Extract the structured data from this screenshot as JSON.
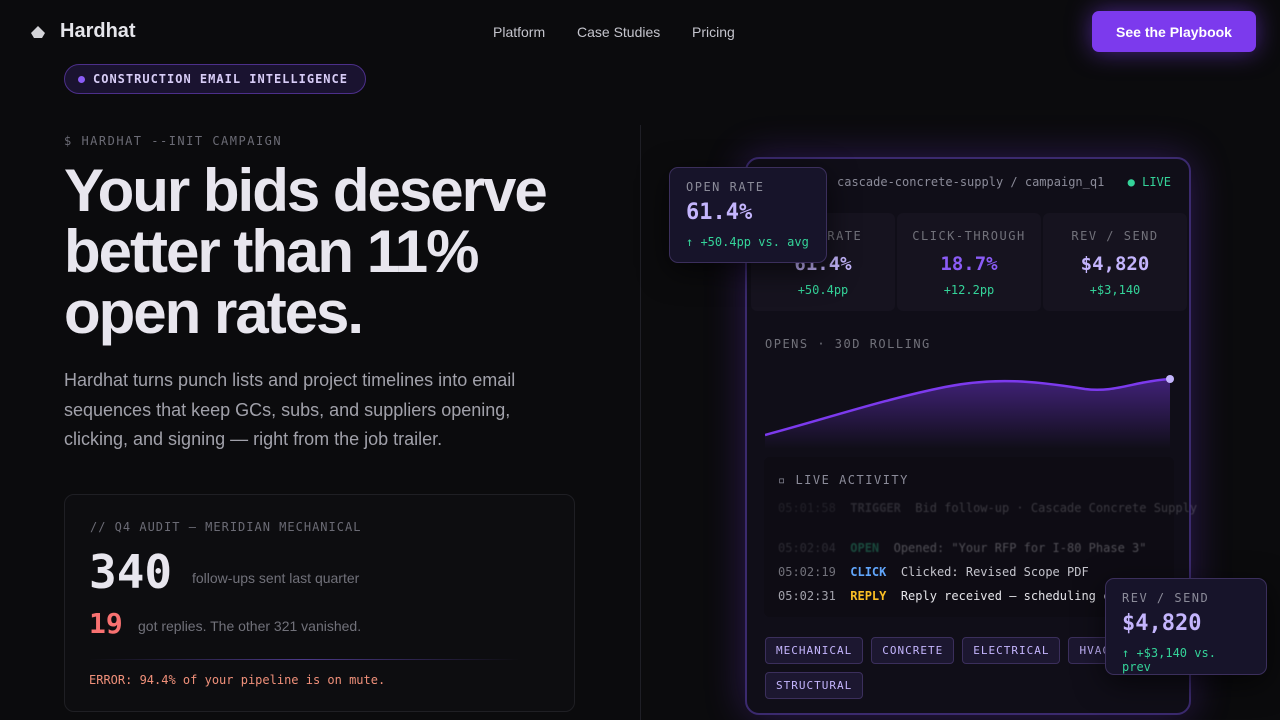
{
  "nav": {
    "brand": "Hardhat",
    "links": [
      "Platform",
      "Case Studies",
      "Pricing"
    ],
    "cta": "See the Playbook"
  },
  "hero": {
    "badge": "CONSTRUCTION EMAIL INTELLIGENCE",
    "command": "$ HARDHAT --INIT CAMPAIGN",
    "headline": [
      "Your bids deserve",
      "better than 11%",
      "open rates."
    ],
    "body": "Hardhat turns punch lists and project timelines into email sequences that keep GCs, subs, and suppliers opening, clicking, and signing — right from the job trailer."
  },
  "audit": {
    "label": "// Q4 AUDIT — MERIDIAN MECHANICAL",
    "sent": "340",
    "sent_caption": "follow-ups sent last quarter",
    "replies": "19",
    "replies_caption": "got replies. The other 321 vanished.",
    "error": "ERROR: 94.4% of your pipeline is on mute."
  },
  "dashboard": {
    "path": "cascade-concrete-supply / campaign_q1",
    "status": "LIVE",
    "metrics": [
      {
        "label": "OPEN RATE",
        "value": "61.4%",
        "delta": "+50.4pp"
      },
      {
        "label": "CLICK-THROUGH",
        "value": "18.7%",
        "delta": "+12.2pp"
      },
      {
        "label": "REV / SEND",
        "value": "$4,820",
        "delta": "+$3,140"
      }
    ],
    "chart_title": "OPENS · 30D ROLLING",
    "activity_title": "LIVE ACTIVITY",
    "activity": [
      {
        "time": "05:01:58",
        "event": "TRIGGER",
        "detail": "Bid follow-up · Cascade Concrete Supply"
      },
      {
        "time": "05:02:04",
        "event": "OPEN",
        "detail": "Opened: \"Your RFP for I-80 Phase 3\""
      },
      {
        "time": "05:02:19",
        "event": "CLICK",
        "detail": "Clicked: Revised Scope PDF"
      },
      {
        "time": "05:02:31",
        "event": "REPLY",
        "detail": "Reply received — scheduling call"
      }
    ],
    "tags": [
      "MECHANICAL",
      "CONCRETE",
      "ELECTRICAL",
      "HVAC",
      "STRUCTURAL"
    ]
  },
  "floats": [
    {
      "label": "OPEN RATE",
      "value": "61.4%",
      "delta": "↑ +50.4pp vs. avg"
    },
    {
      "label": "REV / SEND",
      "value": "$4,820",
      "delta": "↑ +$3,140 vs. prev"
    }
  ]
}
